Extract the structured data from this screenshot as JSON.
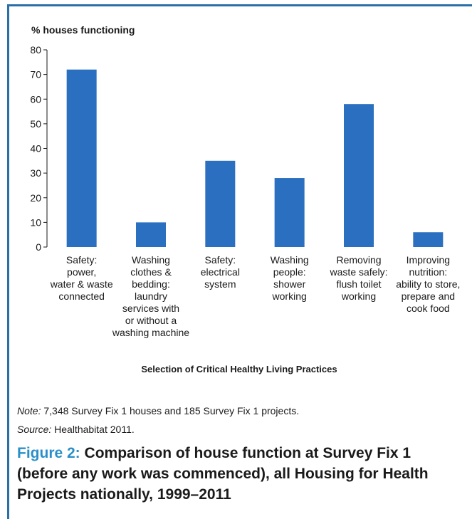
{
  "chart_data": {
    "type": "bar",
    "ylabel": "% houses functioning",
    "xlabel": "Selection of Critical Healthy Living Practices",
    "ylim": [
      0,
      80
    ],
    "yticks": [
      0,
      10,
      20,
      30,
      40,
      50,
      60,
      70,
      80
    ],
    "categories": [
      [
        "Safety:",
        "power,",
        "water & waste",
        "connected"
      ],
      [
        "Washing",
        "clothes &",
        "bedding:",
        "laundry",
        "services with",
        "or without a",
        "washing machine"
      ],
      [
        "Safety:",
        "electrical",
        "system"
      ],
      [
        "Washing",
        "people:",
        "shower",
        "working"
      ],
      [
        "Removing",
        "waste safely:",
        "flush toilet",
        "working"
      ],
      [
        "Improving",
        "nutrition:",
        "ability to store,",
        "prepare and",
        "cook food"
      ]
    ],
    "values": [
      72,
      10,
      35,
      28,
      58,
      6
    ],
    "bar_color": "#2a6fc0",
    "grid": false
  },
  "notes": {
    "note_label": "Note:",
    "note_text": " 7,348 Survey Fix 1 houses and 185 Survey Fix 1 projects.",
    "source_label": "Source:",
    "source_text": " Healthabitat 2011."
  },
  "caption": {
    "figure_label": "Figure 2:",
    "text": " Comparison of house function at Survey Fix 1 (before any work was commenced), all Housing for Health Projects nationally, 1999–2011"
  },
  "colors": {
    "frame": "#2a6fa8",
    "figure_label": "#2a8fc8"
  }
}
